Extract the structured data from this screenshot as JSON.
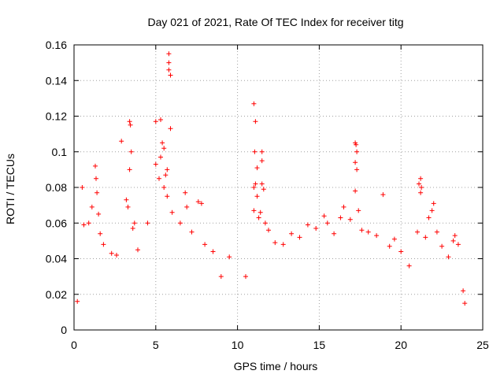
{
  "chart_data": {
    "type": "scatter",
    "title": "Day 021 of 2021, Rate Of TEC Index for receiver titg",
    "xlabel": "GPS time / hours",
    "ylabel": "ROTI / TECUs",
    "xlim": [
      0,
      25
    ],
    "ylim": [
      0,
      0.16
    ],
    "xticks": [
      0,
      5,
      10,
      15,
      20,
      25
    ],
    "xtick_labels": [
      "0",
      "5",
      "10",
      "15",
      "20",
      "25"
    ],
    "yticks": [
      0,
      0.02,
      0.04,
      0.06,
      0.08,
      0.1,
      0.12,
      0.14,
      0.16
    ],
    "ytick_labels": [
      "0",
      "0.02",
      "0.04",
      "0.06",
      "0.08",
      "0.1",
      "0.12",
      "0.14",
      "0.16"
    ],
    "grid": true,
    "marker": "+",
    "series": [
      {
        "name": "ROTI",
        "color": "#ff0000",
        "points": [
          [
            0.2,
            0.016
          ],
          [
            0.5,
            0.08
          ],
          [
            0.6,
            0.059
          ],
          [
            0.9,
            0.06
          ],
          [
            1.1,
            0.069
          ],
          [
            1.3,
            0.092
          ],
          [
            1.35,
            0.085
          ],
          [
            1.4,
            0.077
          ],
          [
            1.5,
            0.065
          ],
          [
            1.6,
            0.054
          ],
          [
            1.8,
            0.048
          ],
          [
            2.3,
            0.043
          ],
          [
            2.6,
            0.042
          ],
          [
            2.9,
            0.106
          ],
          [
            3.2,
            0.073
          ],
          [
            3.3,
            0.069
          ],
          [
            3.4,
            0.117
          ],
          [
            3.45,
            0.115
          ],
          [
            3.5,
            0.1
          ],
          [
            3.4,
            0.09
          ],
          [
            3.6,
            0.057
          ],
          [
            3.7,
            0.06
          ],
          [
            3.9,
            0.045
          ],
          [
            4.5,
            0.06
          ],
          [
            5.0,
            0.093
          ],
          [
            5.0,
            0.117
          ],
          [
            5.3,
            0.118
          ],
          [
            5.4,
            0.105
          ],
          [
            5.5,
            0.102
          ],
          [
            5.3,
            0.097
          ],
          [
            5.2,
            0.085
          ],
          [
            5.5,
            0.08
          ],
          [
            5.6,
            0.087
          ],
          [
            5.7,
            0.09
          ],
          [
            5.8,
            0.155
          ],
          [
            5.8,
            0.15
          ],
          [
            5.9,
            0.143
          ],
          [
            5.8,
            0.146
          ],
          [
            5.9,
            0.113
          ],
          [
            5.7,
            0.075
          ],
          [
            6.0,
            0.066
          ],
          [
            6.5,
            0.06
          ],
          [
            6.8,
            0.077
          ],
          [
            6.9,
            0.069
          ],
          [
            7.2,
            0.055
          ],
          [
            7.6,
            0.072
          ],
          [
            7.8,
            0.071
          ],
          [
            8.0,
            0.048
          ],
          [
            8.5,
            0.044
          ],
          [
            9.0,
            0.03
          ],
          [
            9.5,
            0.041
          ],
          [
            10.5,
            0.03
          ],
          [
            11.0,
            0.127
          ],
          [
            11.1,
            0.117
          ],
          [
            11.05,
            0.1
          ],
          [
            11.2,
            0.091
          ],
          [
            11.1,
            0.082
          ],
          [
            11.0,
            0.08
          ],
          [
            11.2,
            0.075
          ],
          [
            11.0,
            0.067
          ],
          [
            11.3,
            0.063
          ],
          [
            11.5,
            0.1
          ],
          [
            11.5,
            0.095
          ],
          [
            11.5,
            0.082
          ],
          [
            11.6,
            0.079
          ],
          [
            11.4,
            0.066
          ],
          [
            11.7,
            0.06
          ],
          [
            11.9,
            0.056
          ],
          [
            12.3,
            0.049
          ],
          [
            12.8,
            0.048
          ],
          [
            13.3,
            0.054
          ],
          [
            13.8,
            0.052
          ],
          [
            14.3,
            0.059
          ],
          [
            14.8,
            0.057
          ],
          [
            15.3,
            0.064
          ],
          [
            15.5,
            0.06
          ],
          [
            15.9,
            0.054
          ],
          [
            16.3,
            0.063
          ],
          [
            16.5,
            0.069
          ],
          [
            16.9,
            0.062
          ],
          [
            17.2,
            0.105
          ],
          [
            17.25,
            0.104
          ],
          [
            17.3,
            0.1
          ],
          [
            17.2,
            0.094
          ],
          [
            17.3,
            0.09
          ],
          [
            17.2,
            0.078
          ],
          [
            17.4,
            0.067
          ],
          [
            17.6,
            0.056
          ],
          [
            18.0,
            0.055
          ],
          [
            18.5,
            0.053
          ],
          [
            18.9,
            0.076
          ],
          [
            19.3,
            0.047
          ],
          [
            19.6,
            0.051
          ],
          [
            20.0,
            0.044
          ],
          [
            20.5,
            0.036
          ],
          [
            21.0,
            0.055
          ],
          [
            21.1,
            0.082
          ],
          [
            21.2,
            0.085
          ],
          [
            21.25,
            0.08
          ],
          [
            21.2,
            0.077
          ],
          [
            21.5,
            0.052
          ],
          [
            21.7,
            0.063
          ],
          [
            21.9,
            0.067
          ],
          [
            22.0,
            0.071
          ],
          [
            22.2,
            0.055
          ],
          [
            22.5,
            0.047
          ],
          [
            22.9,
            0.041
          ],
          [
            23.2,
            0.05
          ],
          [
            23.3,
            0.053
          ],
          [
            23.5,
            0.048
          ],
          [
            23.8,
            0.022
          ],
          [
            23.9,
            0.015
          ]
        ]
      }
    ]
  }
}
